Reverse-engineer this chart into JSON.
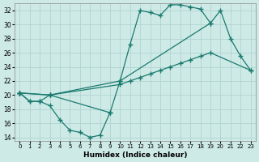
{
  "xlabel": "Humidex (Indice chaleur)",
  "bg_color": "#ceeae7",
  "grid_color": "#b0d4d0",
  "line_color": "#1a7a6e",
  "xlim": [
    -0.5,
    23.5
  ],
  "ylim": [
    13.5,
    33.0
  ],
  "xticks": [
    0,
    1,
    2,
    3,
    4,
    5,
    6,
    7,
    8,
    9,
    10,
    11,
    12,
    13,
    14,
    15,
    16,
    17,
    18,
    19,
    20,
    21,
    22,
    23
  ],
  "yticks": [
    14,
    16,
    18,
    20,
    22,
    24,
    26,
    28,
    30,
    32
  ],
  "lines": [
    {
      "x": [
        0,
        1,
        2,
        3,
        4,
        5,
        6,
        7,
        8,
        9
      ],
      "y": [
        20.3,
        19.1,
        19.1,
        18.5,
        16.5,
        15.0,
        14.7,
        14.0,
        14.3,
        17.5
      ]
    },
    {
      "x": [
        0,
        1,
        2,
        3,
        9,
        10,
        11,
        12,
        13,
        14,
        15,
        16,
        17,
        18,
        19
      ],
      "y": [
        20.3,
        19.1,
        19.1,
        20.0,
        17.5,
        22.0,
        27.2,
        32.0,
        31.7,
        31.3,
        32.8,
        32.8,
        32.5,
        32.2,
        30.2
      ]
    },
    {
      "x": [
        0,
        3,
        10,
        19,
        20,
        21,
        22,
        23
      ],
      "y": [
        20.3,
        20.0,
        22.0,
        30.2,
        32.0,
        28.0,
        25.5,
        23.5
      ]
    },
    {
      "x": [
        0,
        3,
        10,
        11,
        12,
        13,
        14,
        15,
        16,
        17,
        18,
        19,
        23
      ],
      "y": [
        20.3,
        20.0,
        21.5,
        22.0,
        22.5,
        23.0,
        23.5,
        24.0,
        24.5,
        25.0,
        25.5,
        26.0,
        23.5
      ]
    }
  ]
}
